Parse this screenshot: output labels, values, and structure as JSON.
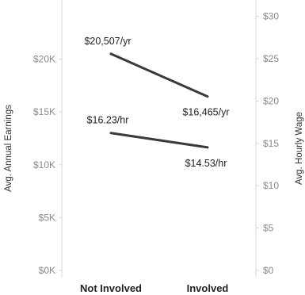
{
  "chart_data": {
    "type": "line",
    "categories": [
      "Not Involved",
      "Involved"
    ],
    "series": [
      {
        "axis": "left",
        "values": [
          20507,
          16465
        ],
        "labels": [
          "$20,507/yr",
          "$16,465/yr"
        ],
        "color": "#3a3a3a"
      },
      {
        "axis": "right",
        "values": [
          16.23,
          14.53
        ],
        "labels": [
          "$16.23/hr",
          "$14.53/hr"
        ],
        "color": "#3a3a3a"
      }
    ],
    "y_left": {
      "label": "Avg. Annual Earnings",
      "range": [
        0,
        25000
      ],
      "ticks": [
        0,
        5000,
        10000,
        15000,
        20000
      ],
      "tick_labels": [
        "$0K",
        "$5K",
        "$10K",
        "$15K",
        "$20K"
      ]
    },
    "y_right": {
      "label": "Avg. Hourly Wage",
      "range": [
        0,
        31
      ],
      "ticks": [
        0,
        5,
        10,
        15,
        20,
        25,
        30
      ],
      "tick_labels": [
        "$0",
        "$5",
        "$10",
        "$15",
        "$20",
        "$25",
        "$30"
      ]
    },
    "edge_fragment": "%",
    "grid": false
  }
}
